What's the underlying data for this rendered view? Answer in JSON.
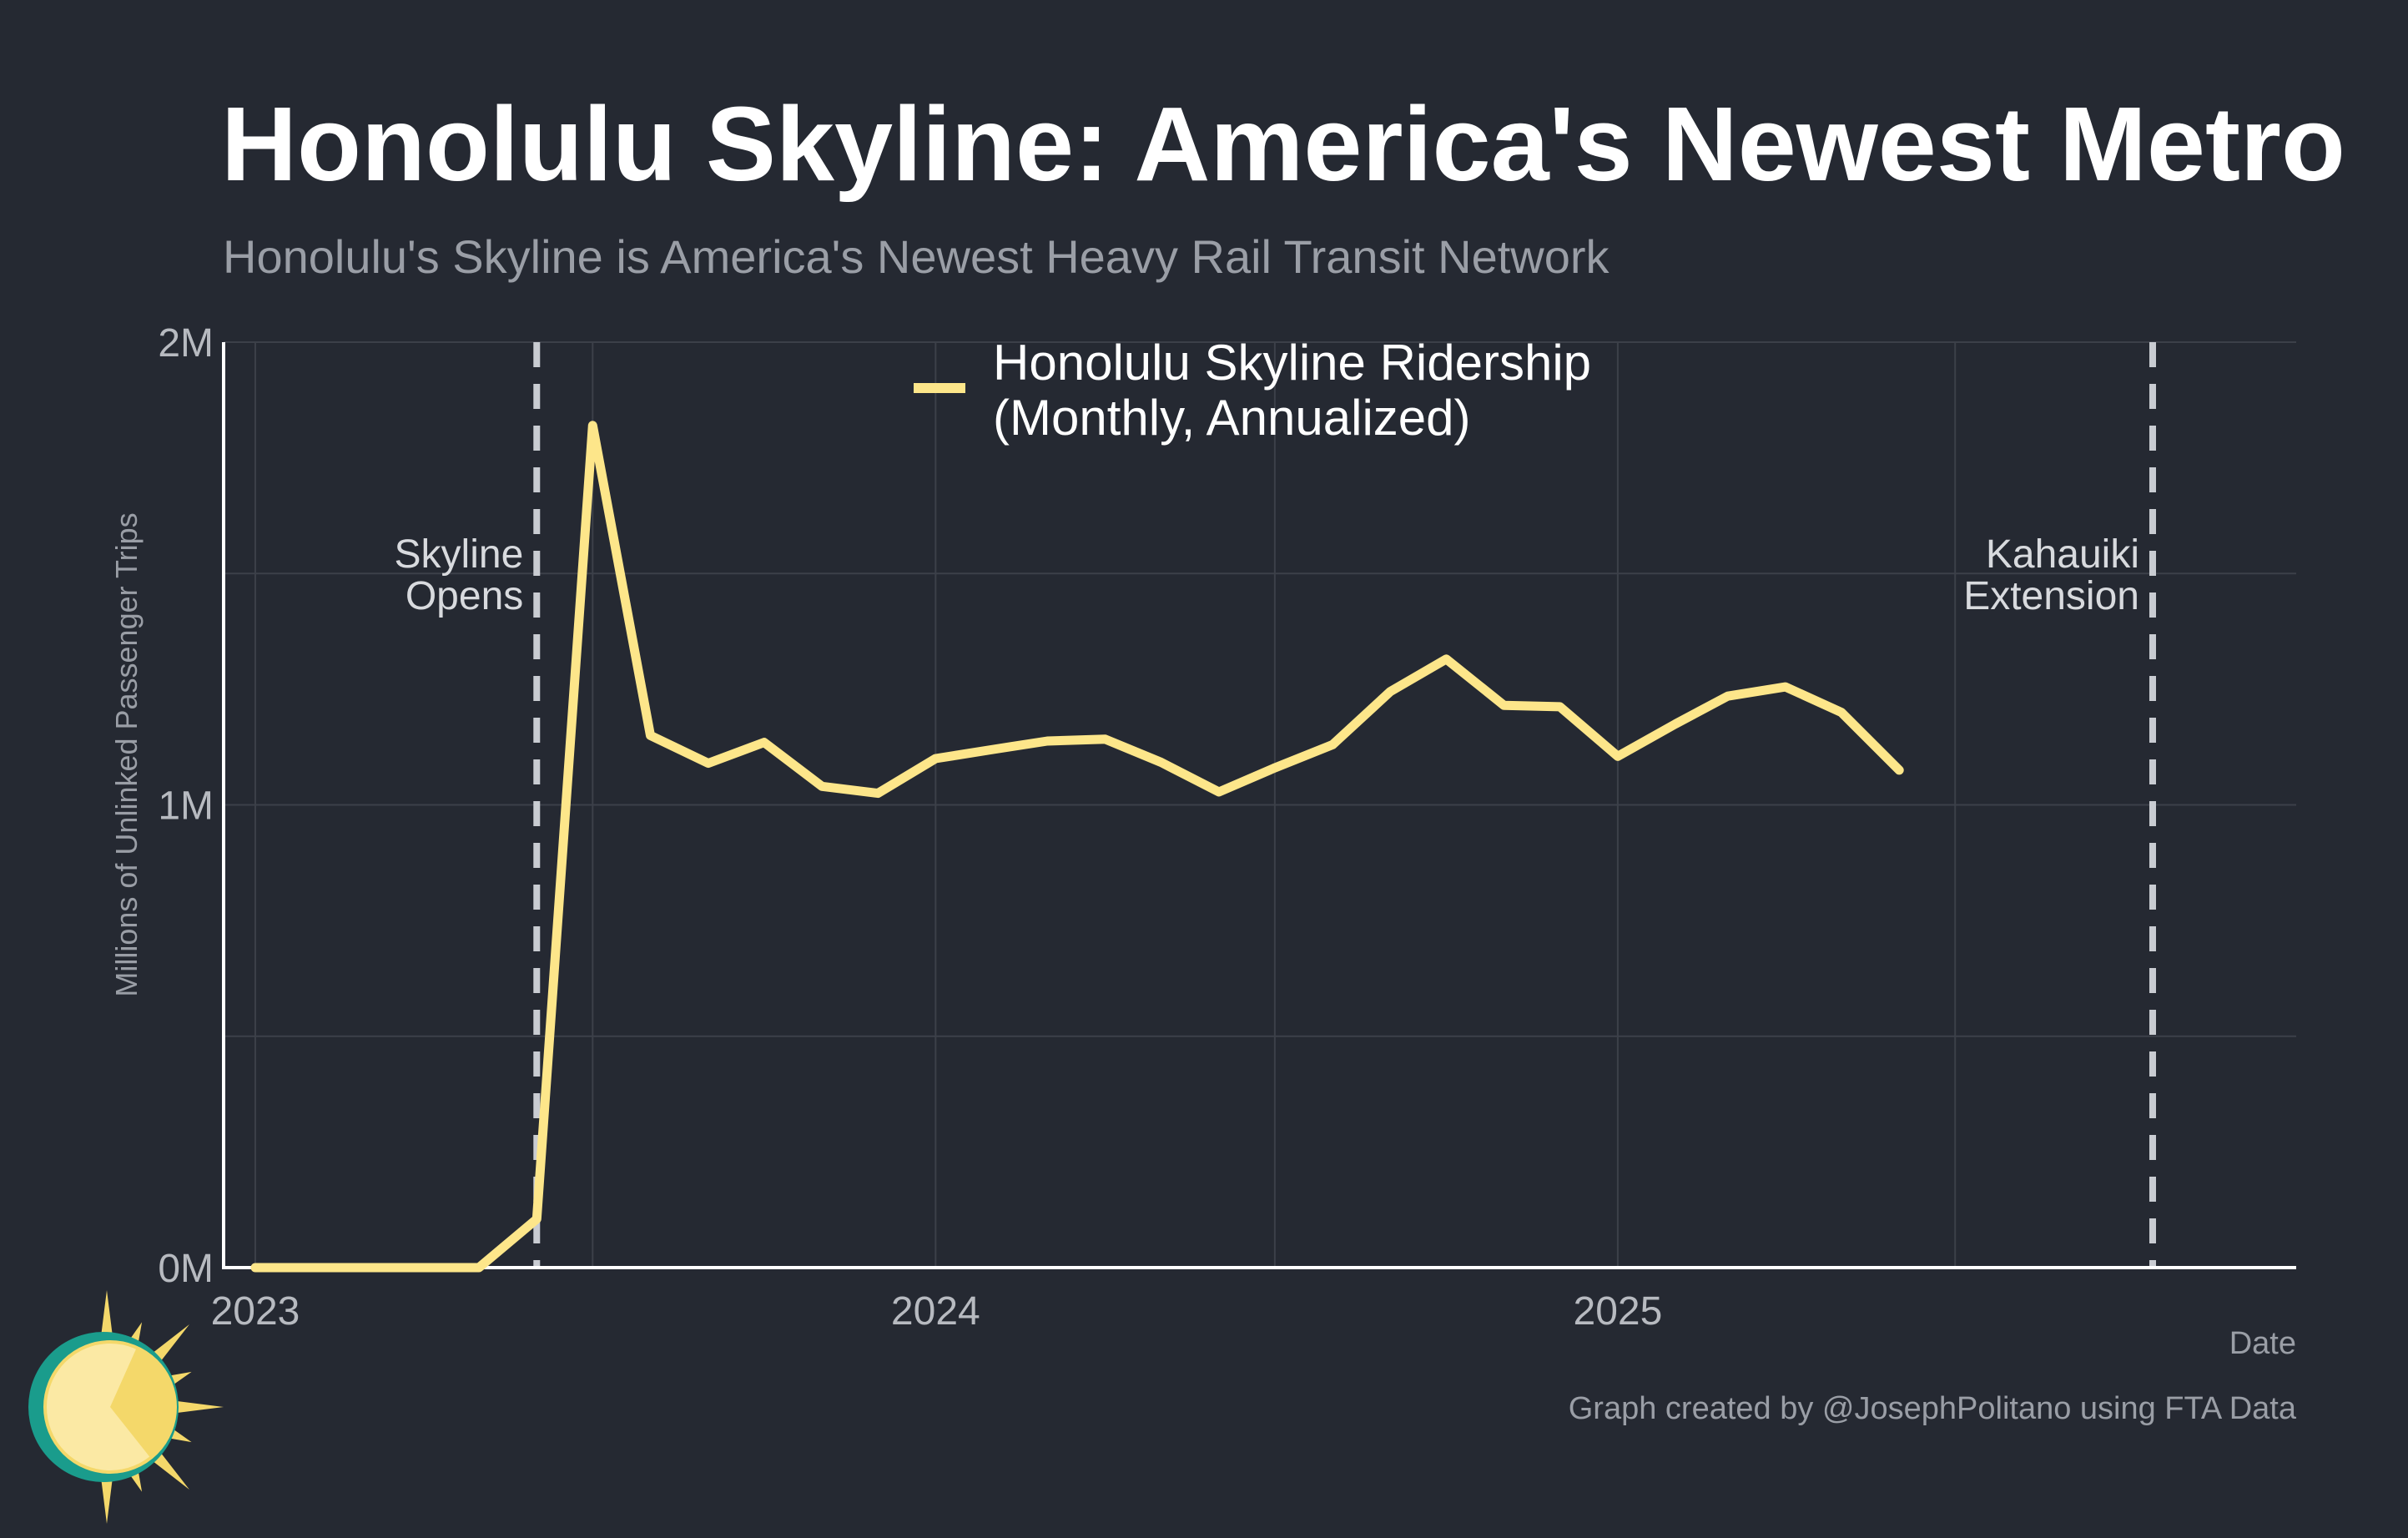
{
  "title": "Honolulu Skyline: America's Newest Metro",
  "subtitle": "Honolulu's Skyline is America's Newest Heavy Rail Transit Network",
  "credit": "Graph created by @JosephPolitano using FTA Data",
  "colors": {
    "background": "#252932",
    "series": "#fde68a",
    "grid": "#3c4049",
    "vline": "#c9ccd2",
    "text": "#ffffff"
  },
  "logo_icon": "sun-logo-icon",
  "chart_data": {
    "type": "line",
    "xlabel": "Date",
    "ylabel": "Millions of Unlinked Passenger Trips",
    "ylim": [
      0,
      2000000
    ],
    "yticks": [
      0,
      1000000,
      2000000
    ],
    "ytick_labels": [
      "0M",
      "1M",
      "2M"
    ],
    "xlim": [
      "2022-12-15",
      "2025-12-31"
    ],
    "xticks": [
      "2023-01-01",
      "2024-01-01",
      "2025-01-01"
    ],
    "xtick_labels": [
      "2023",
      "2024",
      "2025"
    ],
    "grid": true,
    "legend_position": "top-center",
    "series": [
      {
        "name": "Honolulu Skyline Ridership\n(Monthly, Annualized)",
        "x": [
          "2023-01-01",
          "2023-02-01",
          "2023-03-01",
          "2023-04-01",
          "2023-05-01",
          "2023-06-01",
          "2023-07-01",
          "2023-08-01",
          "2023-09-01",
          "2023-10-01",
          "2023-11-01",
          "2023-12-01",
          "2024-01-01",
          "2024-02-01",
          "2024-03-01",
          "2024-04-01",
          "2024-05-01",
          "2024-06-01",
          "2024-07-01",
          "2024-08-01",
          "2024-09-01",
          "2024-10-01",
          "2024-11-01",
          "2024-12-01",
          "2025-01-01",
          "2025-02-01",
          "2025-03-01",
          "2025-04-01",
          "2025-05-01",
          "2025-06-01"
        ],
        "values": [
          0,
          0,
          0,
          0,
          0,
          105000,
          1820000,
          1150000,
          1090000,
          1135000,
          1040000,
          1025000,
          1100000,
          1120000,
          1138000,
          1142000,
          1092000,
          1028000,
          1080000,
          1130000,
          1245000,
          1315000,
          1215000,
          1212000,
          1105000,
          1175000,
          1235000,
          1255000,
          1200000,
          1075000
        ]
      }
    ],
    "annotations": [
      {
        "x": "2023-06-01",
        "label": "Skyline\nOpens",
        "style": "dashed-vertical"
      },
      {
        "x": "2025-10-15",
        "label": "Kahauiki\nExtension",
        "style": "dashed-vertical"
      }
    ]
  }
}
